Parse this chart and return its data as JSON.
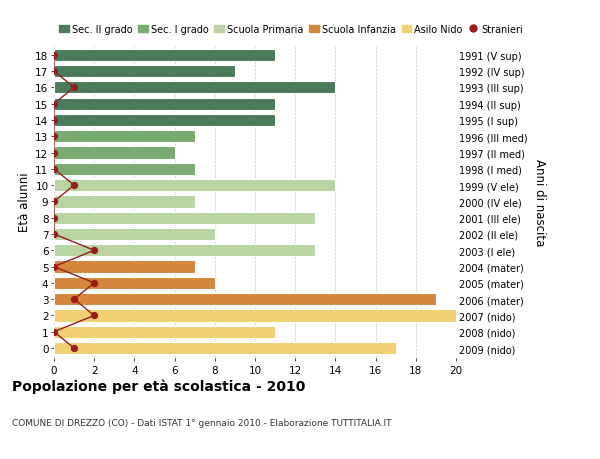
{
  "ages": [
    18,
    17,
    16,
    15,
    14,
    13,
    12,
    11,
    10,
    9,
    8,
    7,
    6,
    5,
    4,
    3,
    2,
    1,
    0
  ],
  "right_labels": [
    "1991 (V sup)",
    "1992 (IV sup)",
    "1993 (III sup)",
    "1994 (II sup)",
    "1995 (I sup)",
    "1996 (III med)",
    "1997 (II med)",
    "1998 (I med)",
    "1999 (V ele)",
    "2000 (IV ele)",
    "2001 (III ele)",
    "2002 (II ele)",
    "2003 (I ele)",
    "2004 (mater)",
    "2005 (mater)",
    "2006 (mater)",
    "2007 (nido)",
    "2008 (nido)",
    "2009 (nido)"
  ],
  "bar_values": [
    11,
    9,
    14,
    11,
    11,
    7,
    6,
    7,
    14,
    7,
    13,
    8,
    13,
    7,
    8,
    19,
    20,
    11,
    17
  ],
  "bar_colors": [
    "#4a7c59",
    "#4a7c59",
    "#4a7c59",
    "#4a7c59",
    "#4a7c59",
    "#7aab6e",
    "#7aab6e",
    "#7aab6e",
    "#b8d4a0",
    "#b8d4a0",
    "#b8d4a0",
    "#b8d4a0",
    "#b8d4a0",
    "#d4863c",
    "#d4863c",
    "#d4863c",
    "#f0d070",
    "#f0d070",
    "#f0d070"
  ],
  "stranieri_values": [
    0,
    0,
    1,
    0,
    0,
    0,
    0,
    0,
    1,
    0,
    0,
    0,
    2,
    0,
    2,
    1,
    2,
    0,
    1
  ],
  "xlim": [
    0,
    20
  ],
  "xlabel_ticks": [
    0,
    2,
    4,
    6,
    8,
    10,
    12,
    14,
    16,
    18,
    20
  ],
  "ylabel_left": "Età alunni",
  "ylabel_right": "Anni di nascita",
  "title": "Popolazione per età scolastica - 2010",
  "subtitle": "COMUNE DI DREZZO (CO) - Dati ISTAT 1° gennaio 2010 - Elaborazione TUTTITALIA.IT",
  "legend_labels": [
    "Sec. II grado",
    "Sec. I grado",
    "Scuola Primaria",
    "Scuola Infanzia",
    "Asilo Nido",
    "Stranieri"
  ],
  "legend_colors": [
    "#4a7c59",
    "#7aab6e",
    "#b8d4a0",
    "#d4863c",
    "#f0d070",
    "#9b1c1c"
  ],
  "color_stranieri": "#9b1c1c",
  "bar_height": 0.75,
  "background_color": "#ffffff",
  "grid_color": "#cccccc"
}
